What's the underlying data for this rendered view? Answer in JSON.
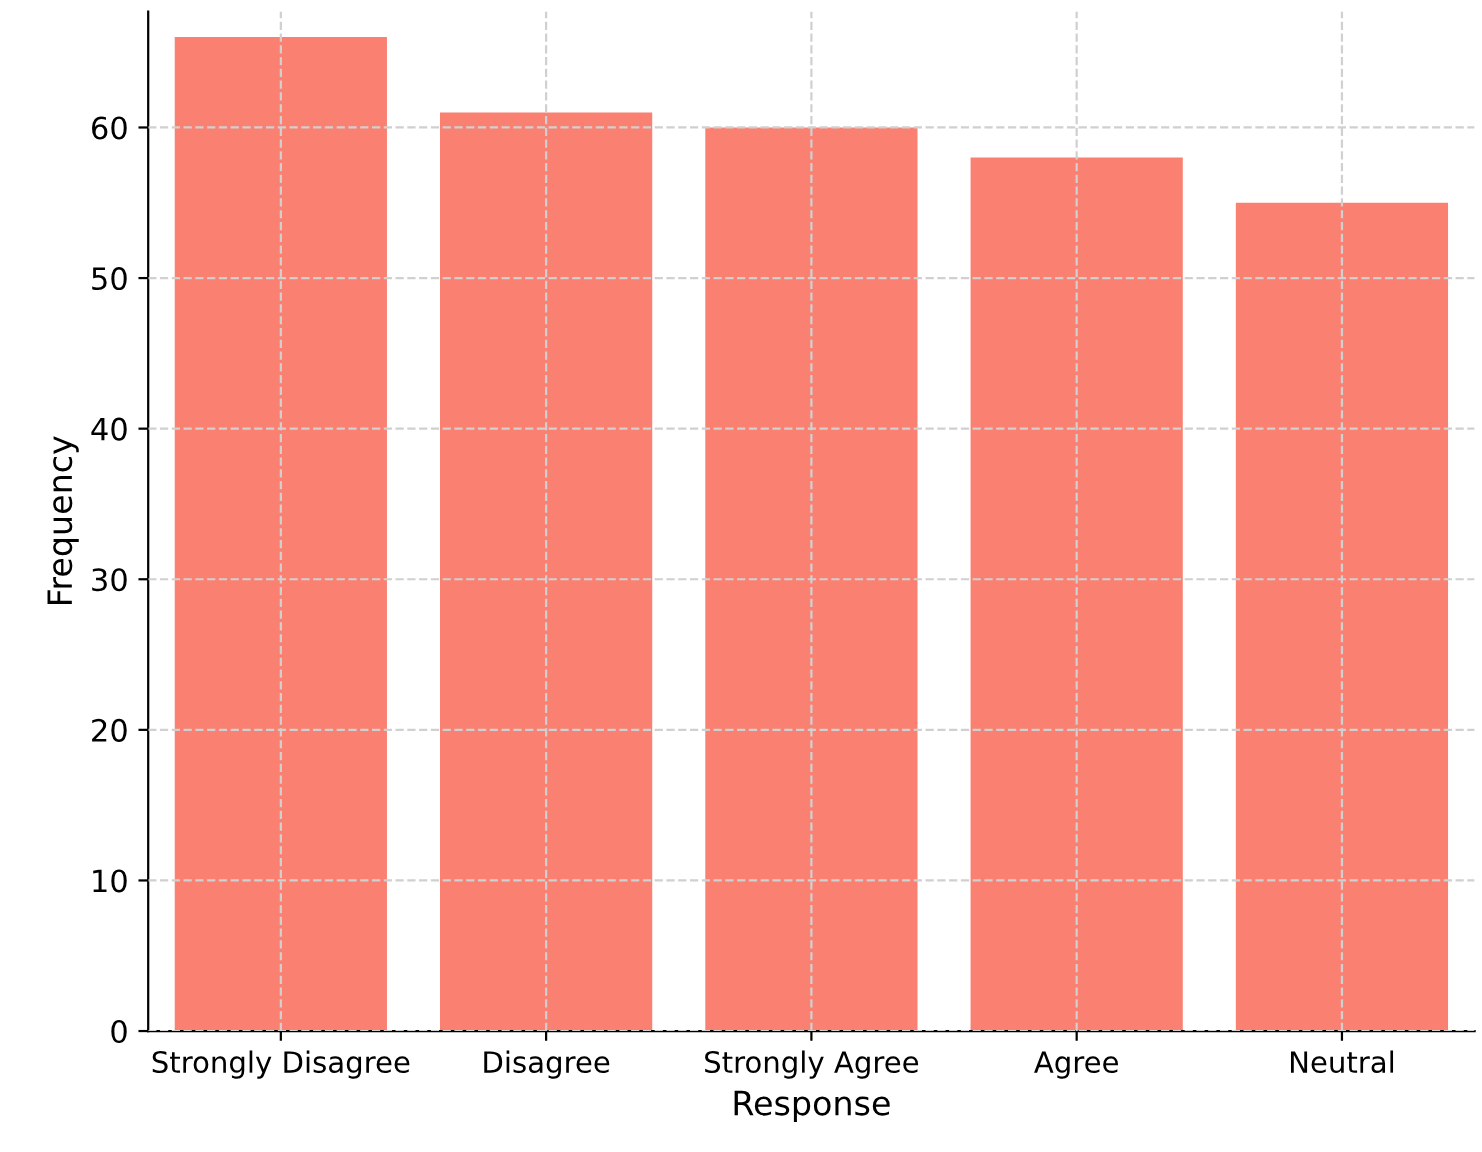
{
  "chart_data": {
    "type": "bar",
    "xlabel": "Response",
    "ylabel": "Frequency",
    "categories": [
      "Strongly Disagree",
      "Disagree",
      "Strongly Agree",
      "Agree",
      "Neutral"
    ],
    "values": [
      66,
      61,
      60,
      58,
      55
    ],
    "color": "#fa8072",
    "ylim": [
      0,
      67.7
    ],
    "yticks": [
      0,
      10,
      20,
      30,
      40,
      50,
      60
    ],
    "grid": true
  }
}
